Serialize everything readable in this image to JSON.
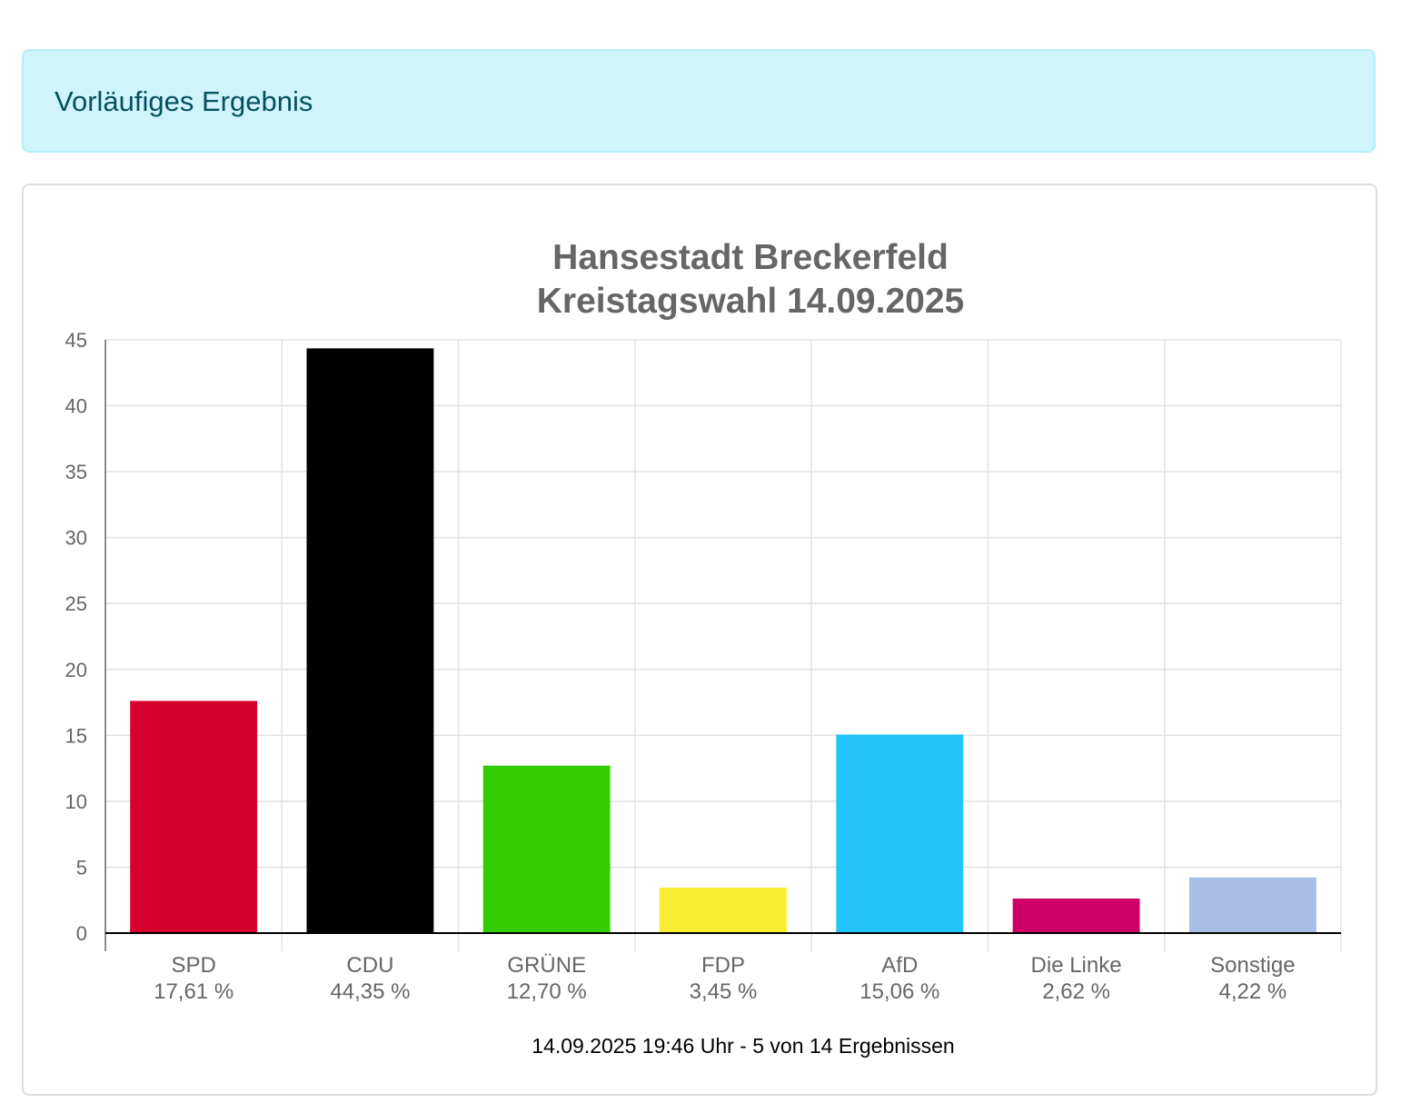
{
  "alert": {
    "text": "Vorläufiges Ergebnis"
  },
  "chart_data": {
    "type": "bar",
    "title": [
      "Hansestadt Breckerfeld",
      "Kreistagswahl 14.09.2025"
    ],
    "categories": [
      "SPD",
      "CDU",
      "GRÜNE",
      "FDP",
      "AfD",
      "Die Linke",
      "Sonstige"
    ],
    "value_labels": [
      "17,61 %",
      "44,35 %",
      "12,70 %",
      "3,45 %",
      "15,06 %",
      "2,62 %",
      "4,22 %"
    ],
    "values": [
      17.61,
      44.35,
      12.7,
      3.45,
      15.06,
      2.62,
      4.22
    ],
    "colors": [
      "#d5002b",
      "#000000",
      "#33cc00",
      "#f7ee33",
      "#22c4fb",
      "#cc0066",
      "#a9bee5"
    ],
    "ylim": [
      0,
      45
    ],
    "yticks": [
      0,
      5,
      10,
      15,
      20,
      25,
      30,
      35,
      40,
      45
    ],
    "grid": true,
    "footer": "14.09.2025 19:46 Uhr - 5 von 14 Ergebnissen"
  }
}
